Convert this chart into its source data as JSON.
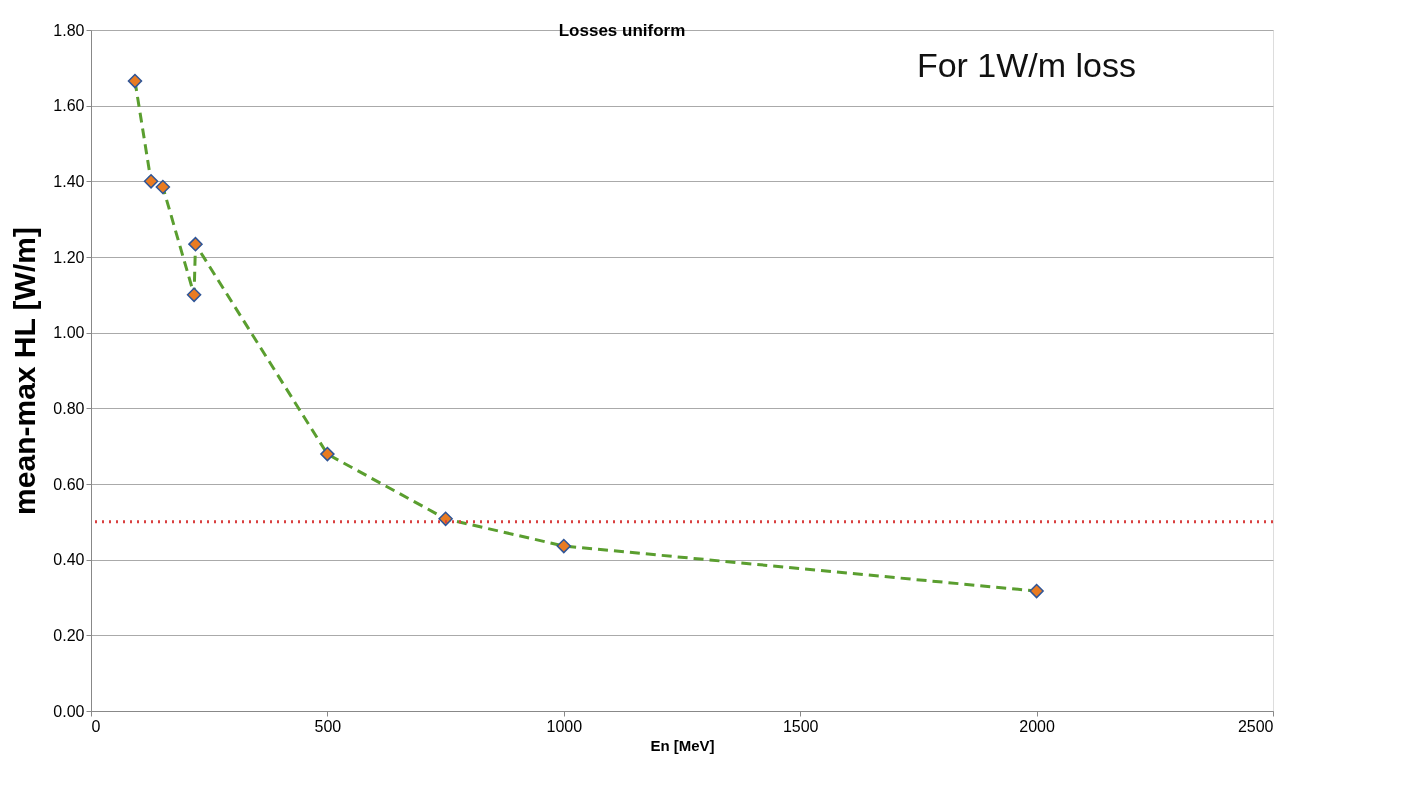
{
  "chart_data": {
    "type": "line",
    "title": "Losses uniform",
    "xlabel": "En [MeV]",
    "ylabel": "mean-max HL [W/m]",
    "annotations": [
      "For 1W/m loss"
    ],
    "x": [
      93,
      127,
      152,
      218,
      221,
      500,
      750,
      1000,
      2000
    ],
    "series": [
      {
        "color": "#5a9e2f",
        "values": [
          1.665,
          1.4,
          1.385,
          1.1,
          1.234,
          0.679,
          0.508,
          0.436,
          0.317
        ]
      }
    ],
    "marker": "diamond",
    "line_style": "dashed",
    "xlim": [
      0,
      2500
    ],
    "xticks": [
      0,
      500,
      1000,
      1500,
      2000,
      2500
    ],
    "ylim": [
      0,
      1.8
    ],
    "yticks": [
      {
        "value": 0,
        "label": "0.00"
      },
      {
        "value": 0.2,
        "label": "0.20"
      },
      {
        "value": 0.4,
        "label": "0.40"
      },
      {
        "value": 0.6,
        "label": "0.60"
      },
      {
        "value": 0.8,
        "label": "0.80"
      },
      {
        "value": 1.0,
        "label": "1.00"
      },
      {
        "value": 1.2,
        "label": "1.20"
      },
      {
        "value": 1.4,
        "label": "1.40"
      },
      {
        "value": 1.6,
        "label": "1.60"
      },
      {
        "value": 1.8,
        "label": "1.80"
      }
    ],
    "ref_lines": [
      {
        "axis": "y",
        "value": 0.5,
        "color": "#d94040",
        "line_style": "dotted"
      }
    ],
    "grid": "y"
  }
}
